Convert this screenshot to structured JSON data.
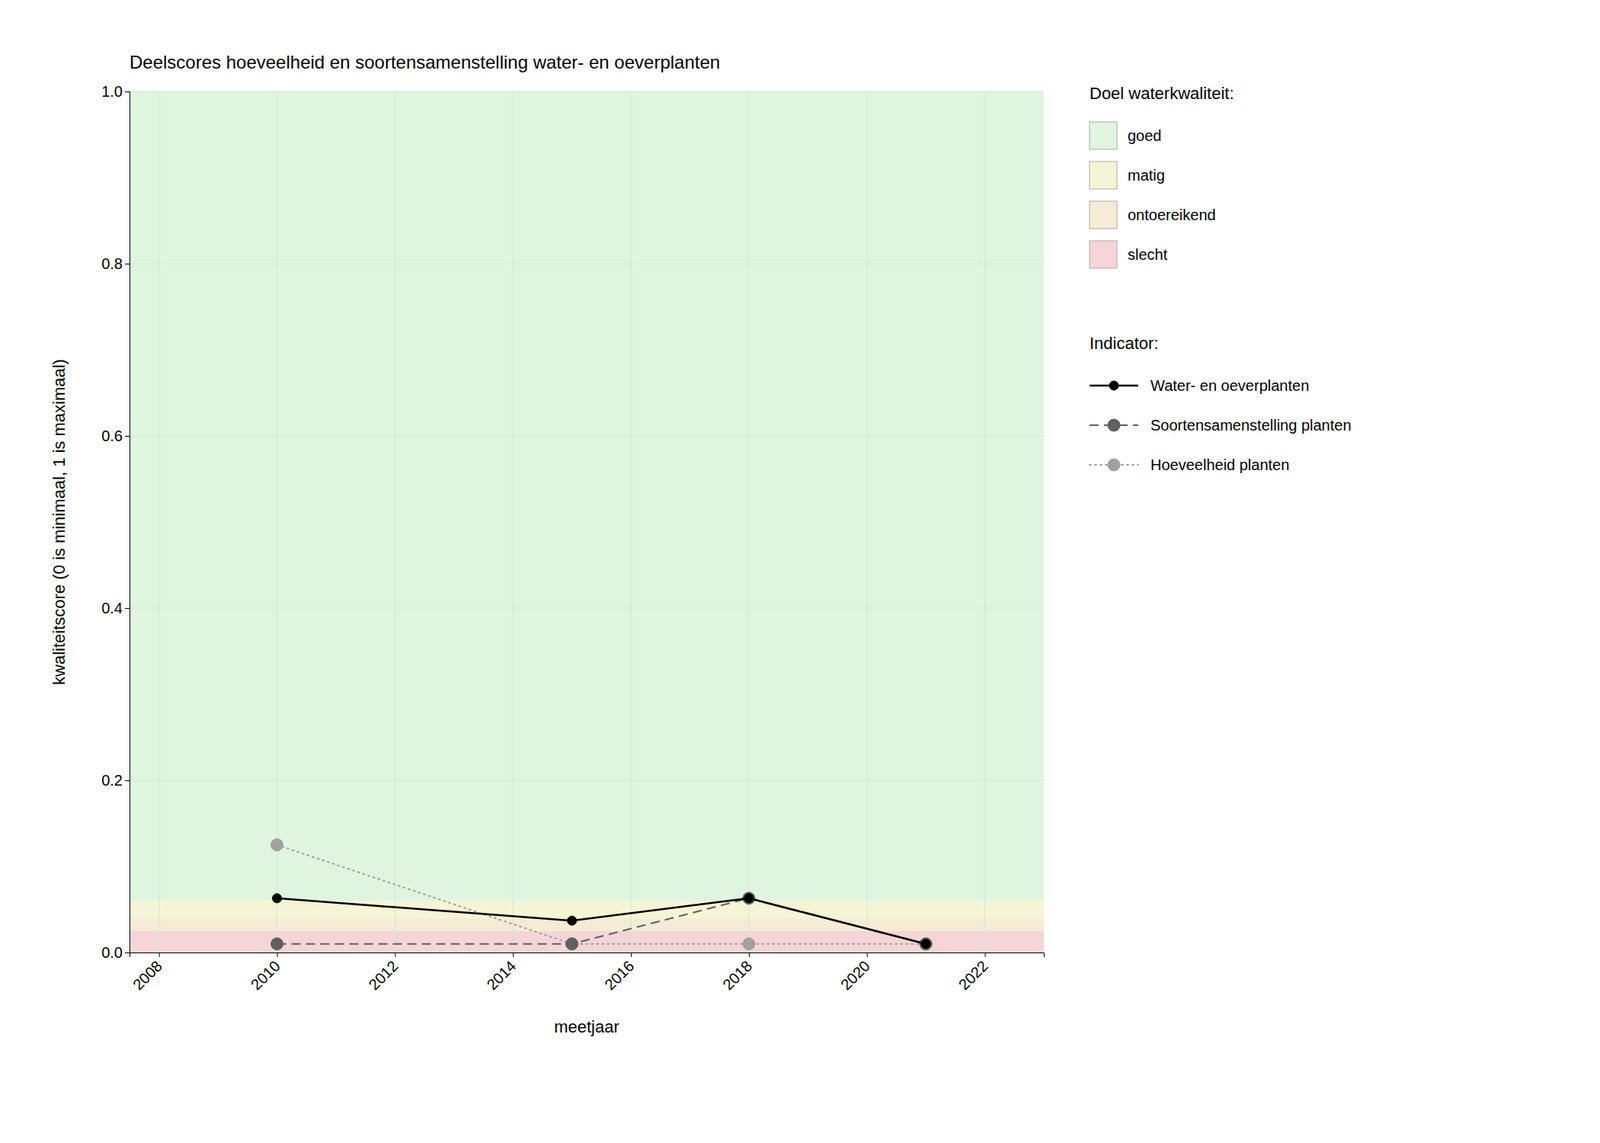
{
  "chart_data": {
    "type": "line",
    "title": "Deelscores hoeveelheid en soortensamenstelling water- en oeverplanten",
    "xlabel": "meetjaar",
    "ylabel": "kwaliteitscore (0 is minimaal, 1 is maximaal)",
    "xlim": [
      2007.5,
      2023.0
    ],
    "ylim": [
      0.0,
      1.0
    ],
    "xticks": [
      2008,
      2010,
      2012,
      2014,
      2016,
      2018,
      2020,
      2022
    ],
    "yticks": [
      {
        "value": 0.0,
        "label": "0.0"
      },
      0.2,
      0.4,
      0.6,
      0.8,
      {
        "value": 1.0,
        "label": "1.0"
      }
    ],
    "grid": true,
    "band_legend_title": "Doel waterkwaliteit:",
    "bands": [
      {
        "name": "goed",
        "color": "#e0f5e0",
        "range": [
          0.06,
          1.0
        ]
      },
      {
        "name": "matig",
        "color": "#f5f5d5",
        "range": [
          0.04,
          0.06
        ]
      },
      {
        "name": "ontoereikend",
        "color": "#f5ecd5",
        "range": [
          0.025,
          0.04
        ]
      },
      {
        "name": "slecht",
        "color": "#f5d5d8",
        "range": [
          0.0,
          0.025
        ]
      }
    ],
    "series_legend_title": "Indicator:",
    "x": [
      2010,
      2015,
      2018,
      2021
    ],
    "series": [
      {
        "name": "Water- en oeverplanten",
        "color": "#000000",
        "line_style": "solid",
        "marker": "circle",
        "values": [
          0.063,
          0.037,
          0.063,
          0.01
        ]
      },
      {
        "name": "Soortensamenstelling planten",
        "color": "#606060",
        "line_style": "dashed",
        "marker": "circle",
        "values": [
          0.01,
          0.01,
          0.063,
          0.01
        ]
      },
      {
        "name": "Hoeveelheid planten",
        "color": "#a0a0a0",
        "line_style": "dotted",
        "marker": "circle",
        "values": [
          0.125,
          0.01,
          0.01,
          0.01
        ]
      }
    ]
  }
}
